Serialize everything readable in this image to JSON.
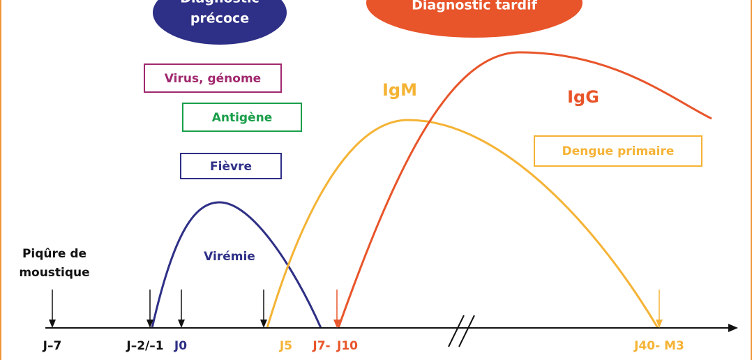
{
  "early_diagnosis": [
    "Diagnostic",
    "précoce"
  ],
  "late_diagnosis": "Diagnostic tardif",
  "boxes": {
    "virus": "Virus, génome",
    "antigen": "Antigène",
    "fever": "Fièvre",
    "dengue": "Dengue primaire"
  },
  "curves": {
    "igm": "IgM",
    "igg": "IgG",
    "viremia": "Virémie"
  },
  "bite": [
    "Piqûre de",
    "moustique"
  ],
  "axis_labels": [
    "J–7",
    "J–2/–1",
    "J0",
    "J5",
    "J7-",
    "J10",
    "J40- M3"
  ]
}
